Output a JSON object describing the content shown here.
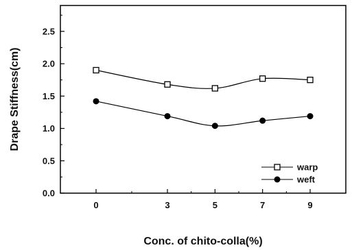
{
  "chart_data": {
    "type": "line",
    "xlabel": "Conc. of chito-colla(%)",
    "ylabel": "Drape Stiffness(cm)",
    "x": [
      0,
      3,
      5,
      7,
      9
    ],
    "x_tick_labels": [
      "0",
      "3",
      "5",
      "7",
      "9"
    ],
    "y_tick_labels": [
      "0.0",
      "0.5",
      "1.0",
      "1.5",
      "2.0",
      "2.5"
    ],
    "y_ticks": [
      0.0,
      0.5,
      1.0,
      1.5,
      2.0,
      2.5
    ],
    "ylim": [
      0.0,
      2.9
    ],
    "series": [
      {
        "name": "warp",
        "marker": "open-square",
        "color": "#000000",
        "values": [
          1.9,
          1.68,
          1.62,
          1.77,
          1.75
        ]
      },
      {
        "name": "weft",
        "marker": "filled-circle",
        "color": "#000000",
        "values": [
          1.42,
          1.19,
          1.04,
          1.12,
          1.19
        ]
      }
    ],
    "legend_position": "right-middle",
    "grid": false
  }
}
